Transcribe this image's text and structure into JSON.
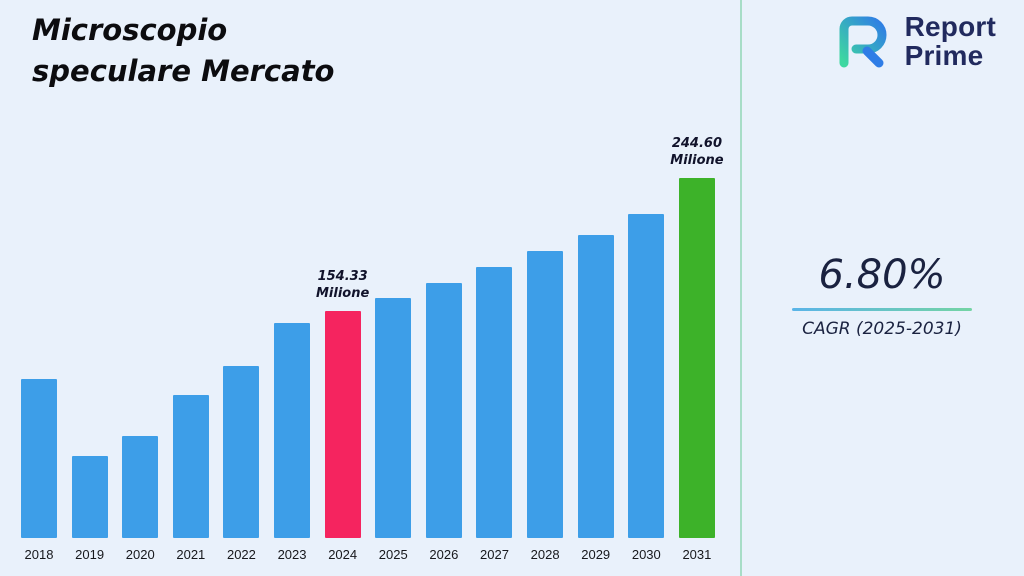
{
  "page": {
    "background": "#e9f1fb",
    "divider_color": "#a7ddc7"
  },
  "header": {
    "title_line1": "Microscopio",
    "title_line2": "speculare Mercato",
    "logo": {
      "line1": "Report",
      "line2": "Prime",
      "color": "#212a5e"
    }
  },
  "right_panel": {
    "cagr_value": "6.80%",
    "cagr_label": "CAGR (2025-2031)"
  },
  "chart_data": {
    "type": "bar",
    "title": "Microscopio speculare Mercato",
    "unit": "Milione",
    "categories": [
      "2018",
      "2019",
      "2020",
      "2021",
      "2022",
      "2023",
      "2024",
      "2025",
      "2026",
      "2027",
      "2028",
      "2029",
      "2030",
      "2031"
    ],
    "values": [
      108,
      56,
      69,
      97,
      117,
      146,
      154.33,
      163,
      173,
      184,
      195,
      206,
      220,
      244.6
    ],
    "ylim": [
      0,
      250
    ],
    "grid": false,
    "legend": false,
    "xlabel": "",
    "ylabel": "",
    "bar_color_default": "#3D9EE8",
    "highlights": [
      {
        "category": "2024",
        "color": "#F5245F",
        "label_line1": "154.33",
        "label_line2": "Milione"
      },
      {
        "category": "2031",
        "color": "#3DB229",
        "label_line1": "244.60",
        "label_line2": "Milione"
      }
    ]
  }
}
